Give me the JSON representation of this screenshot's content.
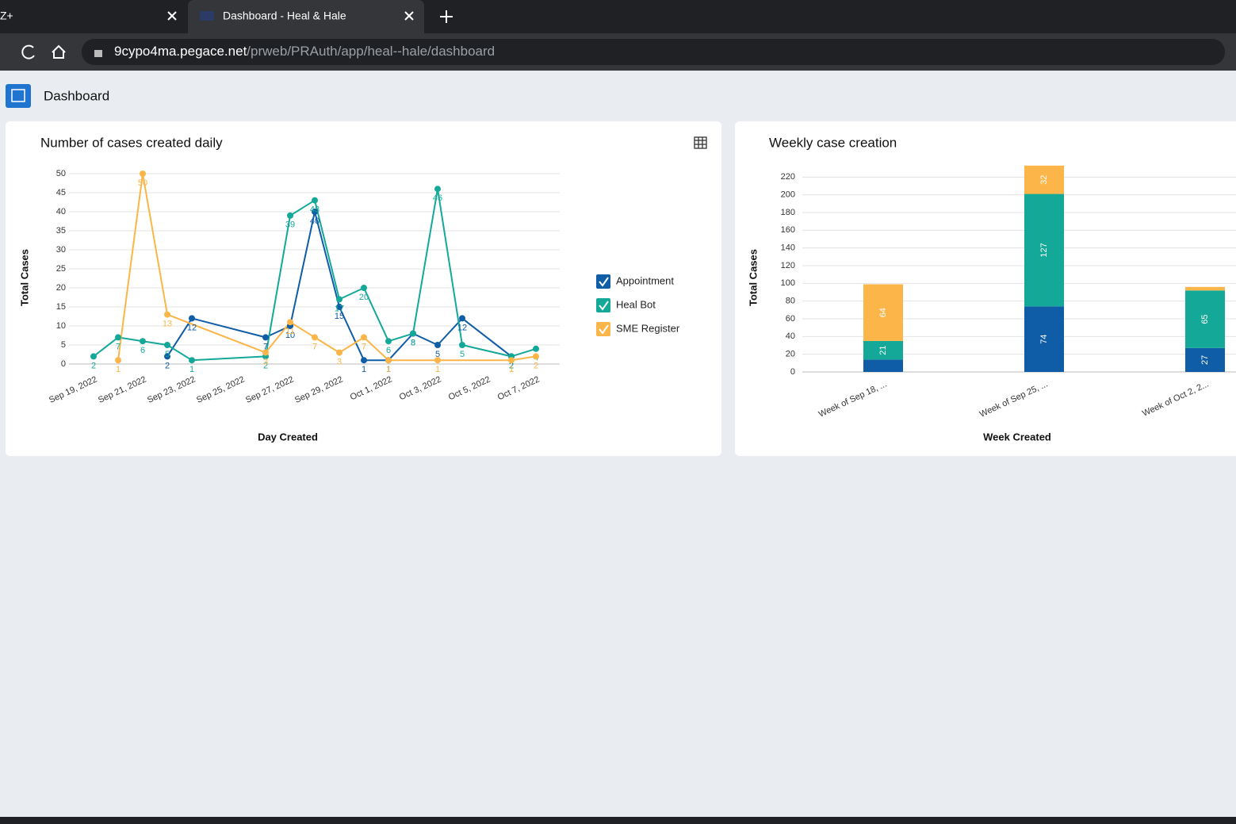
{
  "browser": {
    "tabs": [
      "Z+",
      "Dashboard - Heal & Hale"
    ],
    "url_host": "9cypo4ma.pegace.net",
    "url_path": "/prweb/PRAuth/app/heal--hale/dashboard"
  },
  "header": {
    "title": "Dashboard"
  },
  "chart_data": [
    {
      "type": "line",
      "title": "Number of cases created daily",
      "x_label": "Day Created",
      "y_label": "Total Cases",
      "categories": [
        "Sep 19, 2022",
        null,
        "Sep 21, 2022",
        null,
        "Sep 23, 2022",
        null,
        "Sep 25, 2022",
        null,
        "Sep 27, 2022",
        null,
        "Sep 29, 2022",
        null,
        "Oct 1, 2022",
        null,
        "Oct 3, 2022",
        null,
        "Oct 5, 2022",
        null,
        "Oct 7, 2022"
      ],
      "series": [
        {
          "name": "Appointment",
          "color": "#0f5ca7",
          "values": [
            null,
            null,
            null,
            2,
            12,
            null,
            null,
            7,
            10,
            40,
            15,
            1,
            1,
            8,
            5,
            12,
            null,
            2,
            null
          ]
        },
        {
          "name": "Heal Bot",
          "color": "#14a898",
          "values": [
            2,
            7,
            6,
            5,
            1,
            null,
            null,
            2,
            39,
            43,
            17,
            20,
            6,
            8,
            46,
            5,
            null,
            2,
            4
          ]
        },
        {
          "name": "SME Register",
          "color": "#fbb549",
          "values": [
            null,
            1,
            50,
            13,
            null,
            null,
            null,
            3,
            11,
            7,
            3,
            7,
            1,
            null,
            1,
            null,
            null,
            1,
            2
          ]
        }
      ],
      "ylim": [
        0,
        50
      ],
      "yticks": [
        0,
        5,
        10,
        15,
        20,
        25,
        30,
        35,
        40,
        45,
        50
      ],
      "grid": true,
      "legend": "right"
    },
    {
      "type": "stacked-bar",
      "title": "Weekly case creation",
      "x_label": "Week Created",
      "y_label": "Total Cases",
      "categories": [
        "Week of Sep 18, ...",
        "Week of Sep 25, ...",
        "Week of Oct 2, 2..."
      ],
      "series": [
        {
          "color": "#0f5ca7",
          "values": [
            14,
            74,
            27
          ]
        },
        {
          "color": "#14a898",
          "values": [
            21,
            127,
            65
          ]
        },
        {
          "color": "#fbb549",
          "values": [
            64,
            32,
            4
          ]
        }
      ],
      "ylim": [
        0,
        240
      ],
      "yticks": [
        0,
        20,
        40,
        60,
        80,
        100,
        120,
        140,
        160,
        180,
        200,
        220
      ],
      "grid": true
    }
  ]
}
